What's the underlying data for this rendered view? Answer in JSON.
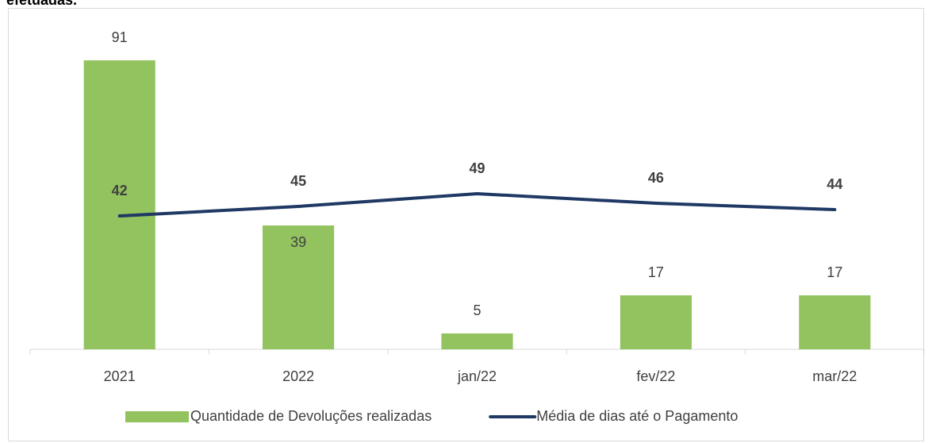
{
  "chart_data": {
    "type": "bar-line",
    "title": "efetuadas.",
    "categories": [
      "2021",
      "2022",
      "jan/22",
      "fev/22",
      "mar/22"
    ],
    "series": [
      {
        "name": "Quantidade de Devoluções realizadas",
        "type": "bar",
        "color": "#92c35f",
        "values": [
          91,
          39,
          5,
          17,
          17
        ]
      },
      {
        "name": "Média de dias até o Pagamento",
        "type": "line",
        "color": "#1f3864",
        "values": [
          42,
          45,
          49,
          46,
          44
        ]
      }
    ],
    "ylim": [
      0,
      100
    ],
    "legend": "bottom"
  }
}
